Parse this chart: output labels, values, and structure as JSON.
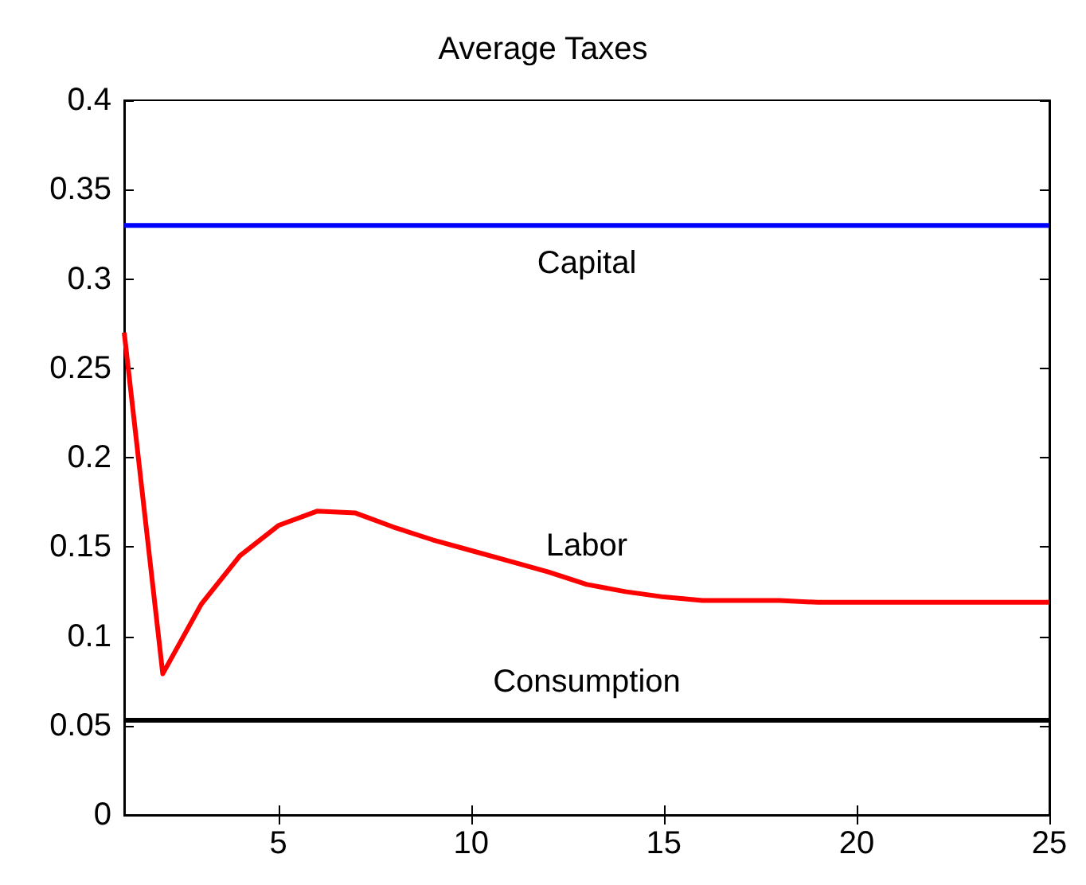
{
  "chart_data": {
    "type": "line",
    "title": "Average Taxes",
    "x": [
      1,
      2,
      3,
      4,
      5,
      6,
      7,
      8,
      9,
      10,
      11,
      12,
      13,
      14,
      15,
      16,
      17,
      18,
      19,
      20,
      21,
      22,
      23,
      24,
      25
    ],
    "series": [
      {
        "name": "Capital",
        "color": "#0000ff",
        "values": [
          0.33,
          0.33,
          0.33,
          0.33,
          0.33,
          0.33,
          0.33,
          0.33,
          0.33,
          0.33,
          0.33,
          0.33,
          0.33,
          0.33,
          0.33,
          0.33,
          0.33,
          0.33,
          0.33,
          0.33,
          0.33,
          0.33,
          0.33,
          0.33,
          0.33
        ]
      },
      {
        "name": "Labor",
        "color": "#ff0000",
        "values": [
          0.27,
          0.079,
          0.118,
          0.145,
          0.162,
          0.17,
          0.169,
          0.161,
          0.154,
          0.148,
          0.142,
          0.136,
          0.129,
          0.125,
          0.122,
          0.12,
          0.12,
          0.12,
          0.119,
          0.119,
          0.119,
          0.119,
          0.119,
          0.119,
          0.119
        ]
      },
      {
        "name": "Consumption",
        "color": "#000000",
        "values": [
          0.053,
          0.053,
          0.053,
          0.053,
          0.053,
          0.053,
          0.053,
          0.053,
          0.053,
          0.053,
          0.053,
          0.053,
          0.053,
          0.053,
          0.053,
          0.053,
          0.053,
          0.053,
          0.053,
          0.053,
          0.053,
          0.053,
          0.053,
          0.053,
          0.053
        ]
      }
    ],
    "xlim": [
      1,
      25
    ],
    "xticks": [
      5,
      10,
      15,
      20,
      25
    ],
    "ylim": [
      0,
      0.4
    ],
    "yticks": [
      0,
      0.05,
      0.1,
      0.15,
      0.2,
      0.25,
      0.3,
      0.35,
      0.4
    ]
  }
}
